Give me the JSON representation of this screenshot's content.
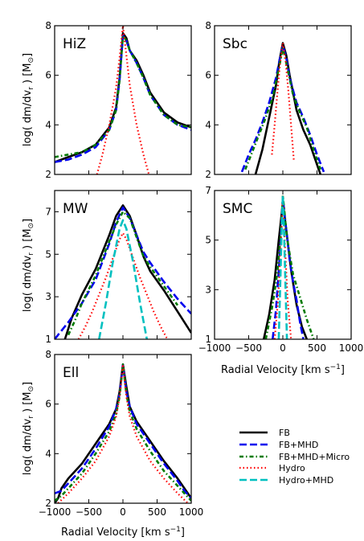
{
  "chart_data": {
    "type": "line",
    "xlabel": "Radial Velocity [km s",
    "xlabel_sup": "−1",
    "xlabel_tail": "]",
    "ylabel": "log( dm/dv",
    "ylabel_sub": "r",
    "ylabel_mid": " ) [M",
    "ylabel_sub2": "⊙",
    "ylabel_tail": "]",
    "xlim": [
      -1000,
      1000
    ],
    "x_ticks": [
      "−1000",
      "−500",
      "0",
      "500",
      "1000"
    ],
    "legend": [
      {
        "name": "FB",
        "color": "#000000",
        "dash": "",
        "width": 2.6
      },
      {
        "name": "FB+MHD",
        "color": "#0000ee",
        "dash": "9,4",
        "width": 2.6
      },
      {
        "name": "FB+MHD+Micro",
        "color": "#007a00",
        "dash": "5,3,1.5,3",
        "width": 2.6
      },
      {
        "name": "Hydro",
        "color": "#ff0000",
        "dash": "1.5,3",
        "width": 2.2
      },
      {
        "name": "Hydro+MHD",
        "color": "#00c0c0",
        "dash": "9,4",
        "width": 2.6
      }
    ],
    "panels": [
      {
        "name": "HiZ",
        "ylim": [
          2,
          8
        ],
        "yticks": [
          "2",
          "4",
          "6",
          "8"
        ],
        "series": [
          {
            "key": "FB",
            "x": [
              -1000,
              -800,
              -600,
              -400,
              -200,
              -100,
              -50,
              0,
              50,
              100,
              200,
              300,
              400,
              600,
              800,
              1000
            ],
            "y": [
              2.5,
              2.7,
              2.9,
              3.2,
              3.9,
              4.7,
              5.9,
              7.7,
              7.5,
              7.0,
              6.6,
              6.0,
              5.3,
              4.5,
              4.1,
              3.9
            ]
          },
          {
            "key": "FB+MHD",
            "x": [
              -1000,
              -800,
              -600,
              -400,
              -200,
              -100,
              -50,
              0,
              50,
              100,
              200,
              300,
              400,
              600,
              800,
              1000
            ],
            "y": [
              2.5,
              2.6,
              2.8,
              3.1,
              3.8,
              4.6,
              5.8,
              7.6,
              7.4,
              7.0,
              6.5,
              5.9,
              5.2,
              4.4,
              4.0,
              3.8
            ]
          },
          {
            "key": "FB+MHD+Micro",
            "x": [
              -1000,
              -800,
              -600,
              -400,
              -200,
              -100,
              -50,
              0,
              50,
              100,
              200,
              300,
              400,
              600,
              800,
              1000
            ],
            "y": [
              2.7,
              2.8,
              2.9,
              3.2,
              3.8,
              4.6,
              5.8,
              7.6,
              7.4,
              7.0,
              6.5,
              5.9,
              5.2,
              4.4,
              4.0,
              3.9
            ]
          },
          {
            "key": "Hydro",
            "x": [
              -380,
              -300,
              -200,
              -100,
              -50,
              0,
              50,
              100,
              200,
              300,
              380
            ],
            "y": [
              2.0,
              2.8,
              4.0,
              5.5,
              6.7,
              8.0,
              6.8,
              5.6,
              4.0,
              2.8,
              2.0
            ]
          }
        ]
      },
      {
        "name": "Sbc",
        "ylim": [
          2,
          8
        ],
        "yticks": [
          "2",
          "4",
          "6",
          "8"
        ],
        "series": [
          {
            "key": "FB",
            "x": [
              -400,
              -300,
              -200,
              -100,
              -50,
              0,
              50,
              100,
              200,
              300,
              400,
              500,
              550
            ],
            "y": [
              2.0,
              3.0,
              4.3,
              5.6,
              6.6,
              7.3,
              6.8,
              6.0,
              4.6,
              3.8,
              3.2,
              2.4,
              2.0
            ]
          },
          {
            "key": "FB+MHD",
            "x": [
              -600,
              -500,
              -400,
              -300,
              -200,
              -100,
              -50,
              0,
              50,
              100,
              200,
              300,
              400,
              500,
              600
            ],
            "y": [
              2.1,
              2.8,
              3.4,
              4.1,
              4.9,
              5.9,
              6.6,
              7.2,
              6.7,
              5.9,
              4.9,
              4.3,
              3.6,
              2.8,
              2.1
            ]
          },
          {
            "key": "FB+MHD+Micro",
            "x": [
              -550,
              -450,
              -350,
              -250,
              -150,
              -50,
              0,
              50,
              150,
              250,
              350,
              450,
              550
            ],
            "y": [
              2.2,
              2.9,
              3.6,
              4.3,
              5.1,
              6.4,
              7.1,
              6.5,
              5.2,
              4.5,
              3.9,
              3.0,
              2.2
            ]
          },
          {
            "key": "Hydro",
            "x": [
              -160,
              -120,
              -80,
              -40,
              0,
              40,
              80,
              120,
              160
            ],
            "y": [
              2.8,
              4.0,
              5.3,
              6.5,
              7.3,
              6.6,
              5.4,
              4.0,
              2.6
            ]
          }
        ]
      },
      {
        "name": "MW",
        "ylim": [
          1,
          8
        ],
        "yticks": [
          "1",
          "3",
          "5",
          "7"
        ],
        "series": [
          {
            "key": "FB",
            "x": [
              -850,
              -750,
              -600,
              -400,
              -200,
              -100,
              0,
              100,
              200,
              300,
              400,
              600,
              800,
              1000
            ],
            "y": [
              1.0,
              2.0,
              3.1,
              4.3,
              5.9,
              6.8,
              7.3,
              6.8,
              5.9,
              4.9,
              4.2,
              3.3,
              2.3,
              1.3
            ]
          },
          {
            "key": "FB+MHD",
            "x": [
              -1000,
              -900,
              -800,
              -600,
              -400,
              -200,
              -100,
              0,
              100,
              200,
              300,
              400,
              600,
              800,
              1000
            ],
            "y": [
              1.0,
              1.4,
              1.8,
              2.7,
              3.8,
              5.5,
              6.5,
              7.2,
              6.7,
              5.9,
              5.1,
              4.6,
              3.7,
              2.9,
              2.2
            ]
          },
          {
            "key": "FB+MHD+Micro",
            "x": [
              -800,
              -700,
              -600,
              -400,
              -200,
              -100,
              0,
              100,
              200,
              300,
              400,
              600,
              800
            ],
            "y": [
              1.2,
              1.9,
              2.7,
              4.0,
              5.6,
              6.4,
              7.0,
              6.7,
              5.8,
              4.9,
              4.4,
              3.5,
              2.6
            ]
          },
          {
            "key": "Hydro",
            "x": [
              -650,
              -550,
              -450,
              -350,
              -250,
              -150,
              -50,
              0,
              50,
              150,
              250,
              350,
              450,
              550,
              650
            ],
            "y": [
              1.0,
              1.6,
              2.3,
              3.1,
              3.9,
              4.8,
              5.7,
              6.0,
              5.7,
              4.8,
              3.9,
              3.1,
              2.3,
              1.6,
              1.0
            ]
          },
          {
            "key": "Hydro+MHD",
            "x": [
              -350,
              -250,
              -150,
              -50,
              0,
              50,
              150,
              250,
              350
            ],
            "y": [
              1.0,
              2.7,
              4.6,
              6.2,
              6.6,
              6.2,
              4.6,
              2.7,
              1.0
            ]
          }
        ]
      },
      {
        "name": "SMC",
        "ylim": [
          1,
          7
        ],
        "yticks": [
          "1",
          "3",
          "5",
          "7"
        ],
        "series": [
          {
            "key": "FB",
            "x": [
              -280,
              -200,
              -120,
              -60,
              0,
              60,
              120,
              200,
              280,
              350
            ],
            "y": [
              1.0,
              2.0,
              3.4,
              5.0,
              6.5,
              5.2,
              3.8,
              2.4,
              1.5,
              1.0
            ]
          },
          {
            "key": "FB+MHD",
            "x": [
              -150,
              -100,
              -50,
              0,
              50,
              100,
              150,
              200,
              250,
              300
            ],
            "y": [
              1.0,
              2.2,
              4.2,
              6.7,
              5.4,
              4.2,
              3.3,
              2.6,
              1.7,
              1.0
            ]
          },
          {
            "key": "FB+MHD+Micro",
            "x": [
              -250,
              -150,
              -80,
              -30,
              0,
              60,
              150,
              250,
              350,
              450
            ],
            "y": [
              1.0,
              2.4,
              3.7,
              5.2,
              6.8,
              5.1,
              3.6,
              2.7,
              1.8,
              1.0
            ]
          },
          {
            "key": "Hydro",
            "x": [
              -120,
              -70,
              -30,
              0,
              30,
              70,
              120
            ],
            "y": [
              1.0,
              2.6,
              4.8,
              6.8,
              4.8,
              2.6,
              1.0
            ]
          },
          {
            "key": "Hydro+MHD",
            "x": [
              -60,
              -35,
              -15,
              0,
              15,
              35,
              60
            ],
            "y": [
              1.0,
              3.5,
              5.6,
              6.8,
              5.6,
              3.5,
              1.0
            ]
          }
        ]
      },
      {
        "name": "Ell",
        "ylim": [
          2,
          8
        ],
        "yticks": [
          "2",
          "4",
          "6",
          "8"
        ],
        "series": [
          {
            "key": "FB",
            "x": [
              -1000,
              -950,
              -900,
              -800,
              -600,
              -400,
              -200,
              -100,
              -50,
              0,
              50,
              100,
              200,
              400,
              600,
              800,
              900,
              1000
            ],
            "y": [
              2.0,
              2.2,
              2.6,
              3.0,
              3.6,
              4.4,
              5.2,
              5.8,
              6.5,
              7.6,
              6.7,
              5.9,
              5.3,
              4.5,
              3.7,
              3.0,
              2.6,
              2.2
            ]
          },
          {
            "key": "FB+MHD",
            "x": [
              -1000,
              -900,
              -800,
              -600,
              -400,
              -200,
              -100,
              -50,
              0,
              50,
              100,
              200,
              400,
              600,
              800,
              900,
              1000
            ],
            "y": [
              2.4,
              2.5,
              2.8,
              3.4,
              4.2,
              5.1,
              5.8,
              6.4,
              7.6,
              6.5,
              5.9,
              5.2,
              4.4,
              3.6,
              2.9,
              2.5,
              2.2
            ]
          },
          {
            "key": "FB+MHD+Micro",
            "x": [
              -1000,
              -900,
              -800,
              -600,
              -400,
              -200,
              -100,
              -50,
              0,
              50,
              100,
              200,
              400,
              600,
              800,
              900,
              1000
            ],
            "y": [
              2.1,
              2.3,
              2.6,
              3.2,
              4.0,
              4.9,
              5.6,
              6.3,
              7.6,
              6.4,
              5.7,
              5.0,
              4.1,
              3.3,
              2.7,
              2.4,
              2.1
            ]
          },
          {
            "key": "Hydro",
            "x": [
              -950,
              -800,
              -600,
              -400,
              -200,
              -100,
              -50,
              0,
              50,
              100,
              200,
              400,
              600,
              800,
              950
            ],
            "y": [
              2.0,
              2.4,
              3.0,
              3.7,
              4.7,
              5.5,
              6.3,
              7.6,
              6.3,
              5.5,
              4.7,
              3.7,
              3.0,
              2.4,
              2.0
            ]
          }
        ]
      }
    ]
  }
}
